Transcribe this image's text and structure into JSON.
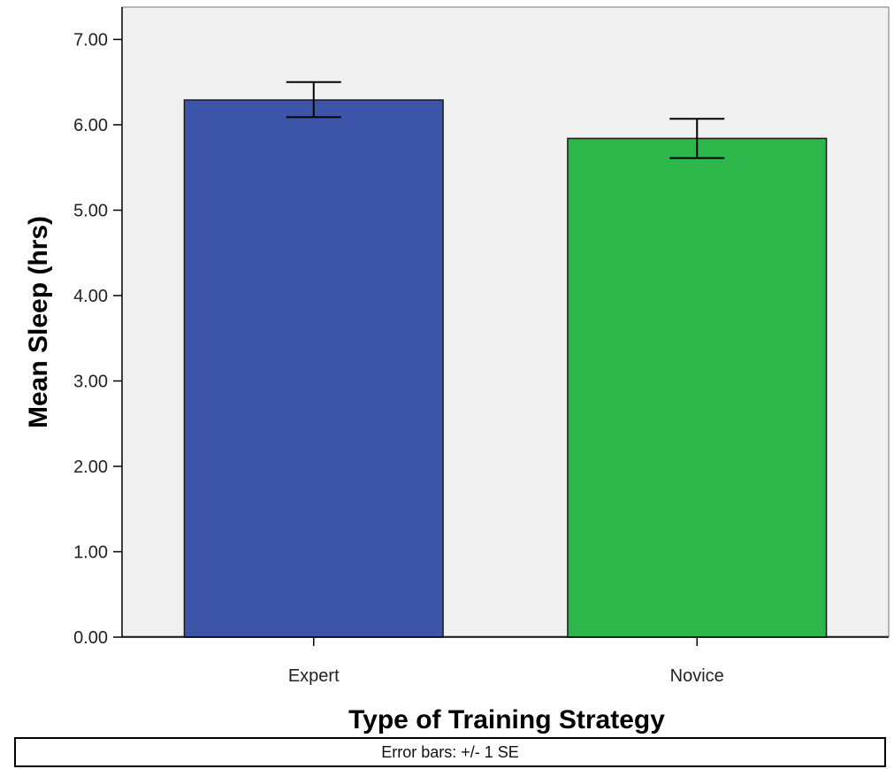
{
  "chart_data": {
    "type": "bar",
    "categories": [
      "Expert",
      "Novice"
    ],
    "values": [
      6.29,
      5.84
    ],
    "error_bars": [
      {
        "low": 6.09,
        "high": 6.5
      },
      {
        "low": 5.61,
        "high": 6.07
      }
    ],
    "colors": [
      "#3C55A9",
      "#2DB74A"
    ],
    "xlabel": "Type of Training Strategy",
    "ylabel": "Mean Sleep (hrs)",
    "ylim": [
      0,
      7
    ],
    "yticks": [
      "0.00",
      "1.00",
      "2.00",
      "3.00",
      "4.00",
      "5.00",
      "6.00",
      "7.00"
    ],
    "grid": false,
    "plot_background": "#F0F0F0",
    "footnote": "Error bars: +/- 1 SE"
  }
}
